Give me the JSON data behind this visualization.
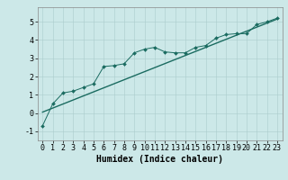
{
  "title": "",
  "xlabel": "Humidex (Indice chaleur)",
  "ylabel": "",
  "bg_color": "#cce8e8",
  "grid_color": "#aacccc",
  "line_color": "#1a6b60",
  "marker_color": "#1a6b60",
  "xlim": [
    -0.5,
    23.5
  ],
  "ylim": [
    -1.5,
    5.8
  ],
  "xticks": [
    0,
    1,
    2,
    3,
    4,
    5,
    6,
    7,
    8,
    9,
    10,
    11,
    12,
    13,
    14,
    15,
    16,
    17,
    18,
    19,
    20,
    21,
    22,
    23
  ],
  "yticks": [
    -1,
    0,
    1,
    2,
    3,
    4,
    5
  ],
  "scatter_x": [
    0,
    1,
    2,
    3,
    4,
    5,
    6,
    7,
    8,
    9,
    10,
    11,
    12,
    13,
    14,
    15,
    16,
    17,
    18,
    19,
    20,
    21,
    22,
    23
  ],
  "scatter_y": [
    -0.7,
    0.5,
    1.1,
    1.2,
    1.4,
    1.6,
    2.55,
    2.6,
    2.7,
    3.3,
    3.5,
    3.6,
    3.35,
    3.3,
    3.3,
    3.6,
    3.7,
    4.1,
    4.3,
    4.35,
    4.35,
    4.85,
    5.0,
    5.2
  ],
  "trend_x": [
    0,
    23
  ],
  "trend_y": [
    0.05,
    5.15
  ],
  "font_size_xlabel": 7,
  "font_size_ticks": 6
}
